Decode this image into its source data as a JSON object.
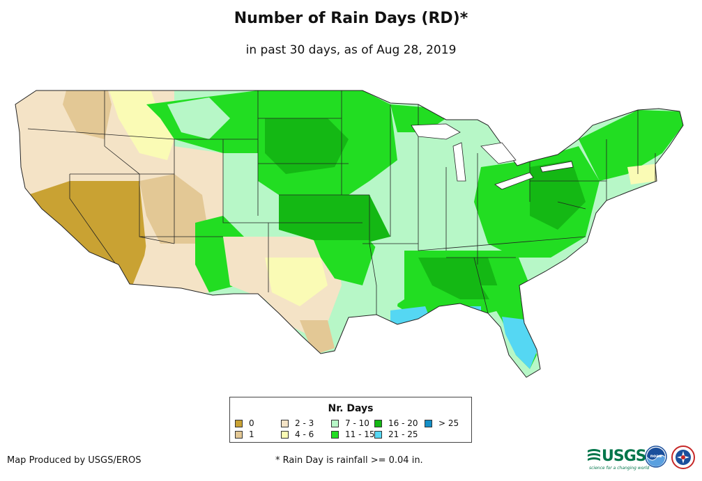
{
  "title": "Number of Rain Days (RD)*",
  "subtitle": "in past 30 days, as of Aug 28, 2019",
  "legend": {
    "title": "Nr. Days",
    "items": [
      {
        "label": "0",
        "color": "#c9a233"
      },
      {
        "label": "1",
        "color": "#e3c895"
      },
      {
        "label": "2 - 3",
        "color": "#f4e3c6"
      },
      {
        "label": "4 - 6",
        "color": "#fafbb5"
      },
      {
        "label": "7 - 10",
        "color": "#b7f7c7"
      },
      {
        "label": "11 - 15",
        "color": "#22dd22"
      },
      {
        "label": "16 - 20",
        "color": "#14b814"
      },
      {
        "label": "21 - 25",
        "color": "#55d7f3"
      },
      {
        "label": "> 25",
        "color": "#138fc7"
      }
    ]
  },
  "footer": {
    "credit": "Map Produced by USGS/EROS",
    "note": "* Rain Day is rainfall >= 0.04 in."
  },
  "logos": {
    "usgs": "USGS",
    "usgs_tagline": "science for a changing world",
    "noaa": "noaa"
  }
}
